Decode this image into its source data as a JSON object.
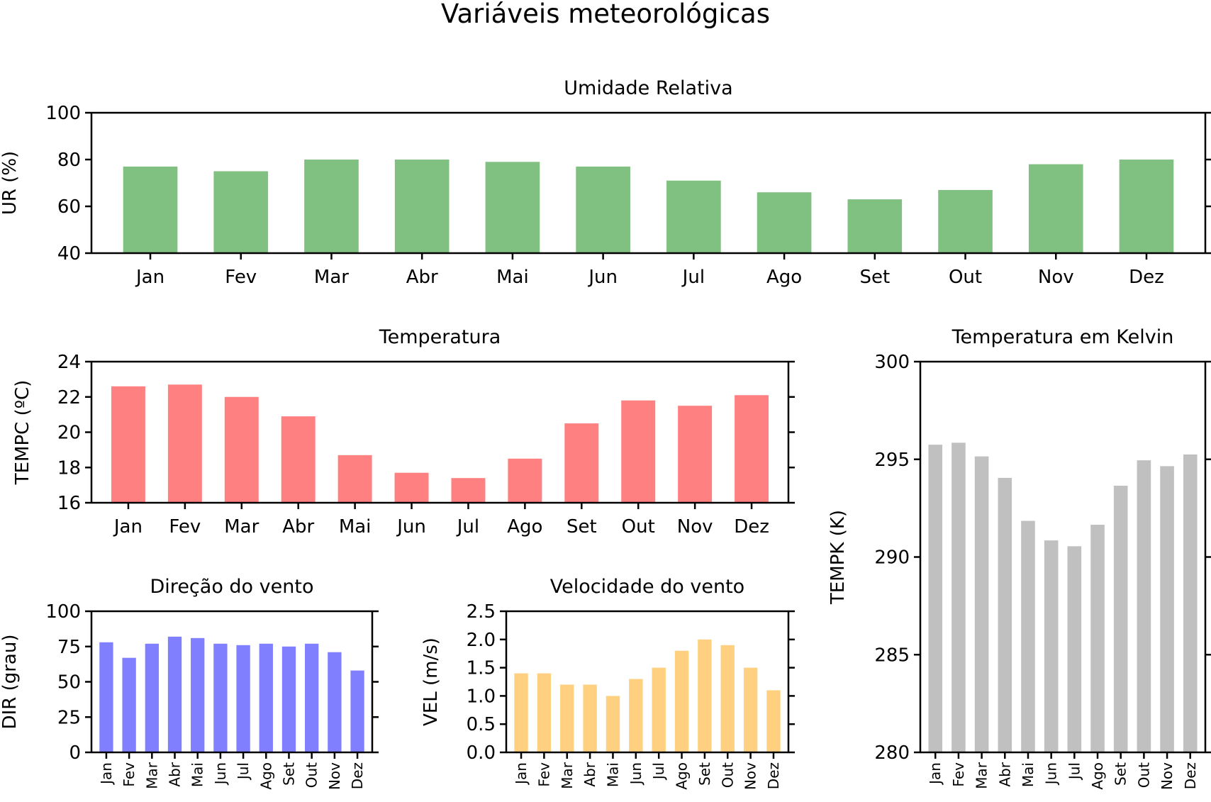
{
  "figure": {
    "title": "Variáveis meteorológicas"
  },
  "months": [
    "Jan",
    "Fev",
    "Mar",
    "Abr",
    "Mai",
    "Jun",
    "Jul",
    "Ago",
    "Set",
    "Out",
    "Nov",
    "Dez"
  ],
  "chart_data": [
    {
      "id": "ur",
      "type": "bar",
      "title": "Umidade Relativa",
      "xlabel": "",
      "ylabel": "UR (%)",
      "categories": [
        "Jan",
        "Fev",
        "Mar",
        "Abr",
        "Mai",
        "Jun",
        "Jul",
        "Ago",
        "Set",
        "Out",
        "Nov",
        "Dez"
      ],
      "values": [
        77,
        75,
        80,
        80,
        79,
        77,
        71,
        66,
        63,
        67,
        78,
        80
      ],
      "ylim": [
        40,
        100
      ],
      "yticks": [
        "40",
        "60",
        "80",
        "100"
      ],
      "color": "#80c080",
      "grid": false
    },
    {
      "id": "tempc",
      "type": "bar",
      "title": "Temperatura",
      "xlabel": "",
      "ylabel": "TEMPC (ºC)",
      "categories": [
        "Jan",
        "Fev",
        "Mar",
        "Abr",
        "Mai",
        "Jun",
        "Jul",
        "Ago",
        "Set",
        "Out",
        "Nov",
        "Dez"
      ],
      "values": [
        22.6,
        22.7,
        22.0,
        20.9,
        18.7,
        17.7,
        17.4,
        18.5,
        20.5,
        21.8,
        21.5,
        22.1
      ],
      "ylim": [
        16,
        24
      ],
      "yticks": [
        "16",
        "18",
        "20",
        "22",
        "24"
      ],
      "color": "#ff8080",
      "grid": false
    },
    {
      "id": "dir",
      "type": "bar",
      "title": "Direção do vento",
      "xlabel": "",
      "ylabel": "DIR (grau)",
      "categories": [
        "Jan",
        "Fev",
        "Mar",
        "Abr",
        "Mai",
        "Jun",
        "Jul",
        "Ago",
        "Set",
        "Out",
        "Nov",
        "Dez"
      ],
      "values": [
        78,
        67,
        77,
        82,
        81,
        77,
        76,
        77,
        75,
        77,
        71,
        58
      ],
      "ylim": [
        0,
        100
      ],
      "yticks": [
        "0",
        "25",
        "50",
        "75",
        "100"
      ],
      "color": "#8080ff",
      "grid": false
    },
    {
      "id": "vel",
      "type": "bar",
      "title": "Velocidade do vento",
      "xlabel": "",
      "ylabel": "VEL (m/s)",
      "categories": [
        "Jan",
        "Fev",
        "Mar",
        "Abr",
        "Mai",
        "Jun",
        "Jul",
        "Ago",
        "Set",
        "Out",
        "Nov",
        "Dez"
      ],
      "values": [
        1.4,
        1.4,
        1.2,
        1.2,
        1.0,
        1.3,
        1.5,
        1.8,
        2.0,
        1.9,
        1.5,
        1.1
      ],
      "ylim": [
        0,
        2.5
      ],
      "yticks": [
        "0.0",
        "0.5",
        "1.0",
        "1.5",
        "2.0",
        "2.5"
      ],
      "color": "#ffd080",
      "grid": false
    },
    {
      "id": "tempk",
      "type": "bar",
      "title": "Temperatura em Kelvin",
      "xlabel": "",
      "ylabel": "TEMPK (K)",
      "categories": [
        "Jan",
        "Fev",
        "Mar",
        "Abr",
        "Mai",
        "Jun",
        "Jul",
        "Ago",
        "Set",
        "Out",
        "Nov",
        "Dez"
      ],
      "values": [
        295.75,
        295.85,
        295.15,
        294.05,
        291.85,
        290.85,
        290.55,
        291.65,
        293.65,
        294.95,
        294.65,
        295.25
      ],
      "ylim": [
        280,
        300
      ],
      "yticks": [
        "280",
        "285",
        "290",
        "295",
        "300"
      ],
      "color": "#c0c0c0",
      "grid": false
    }
  ]
}
